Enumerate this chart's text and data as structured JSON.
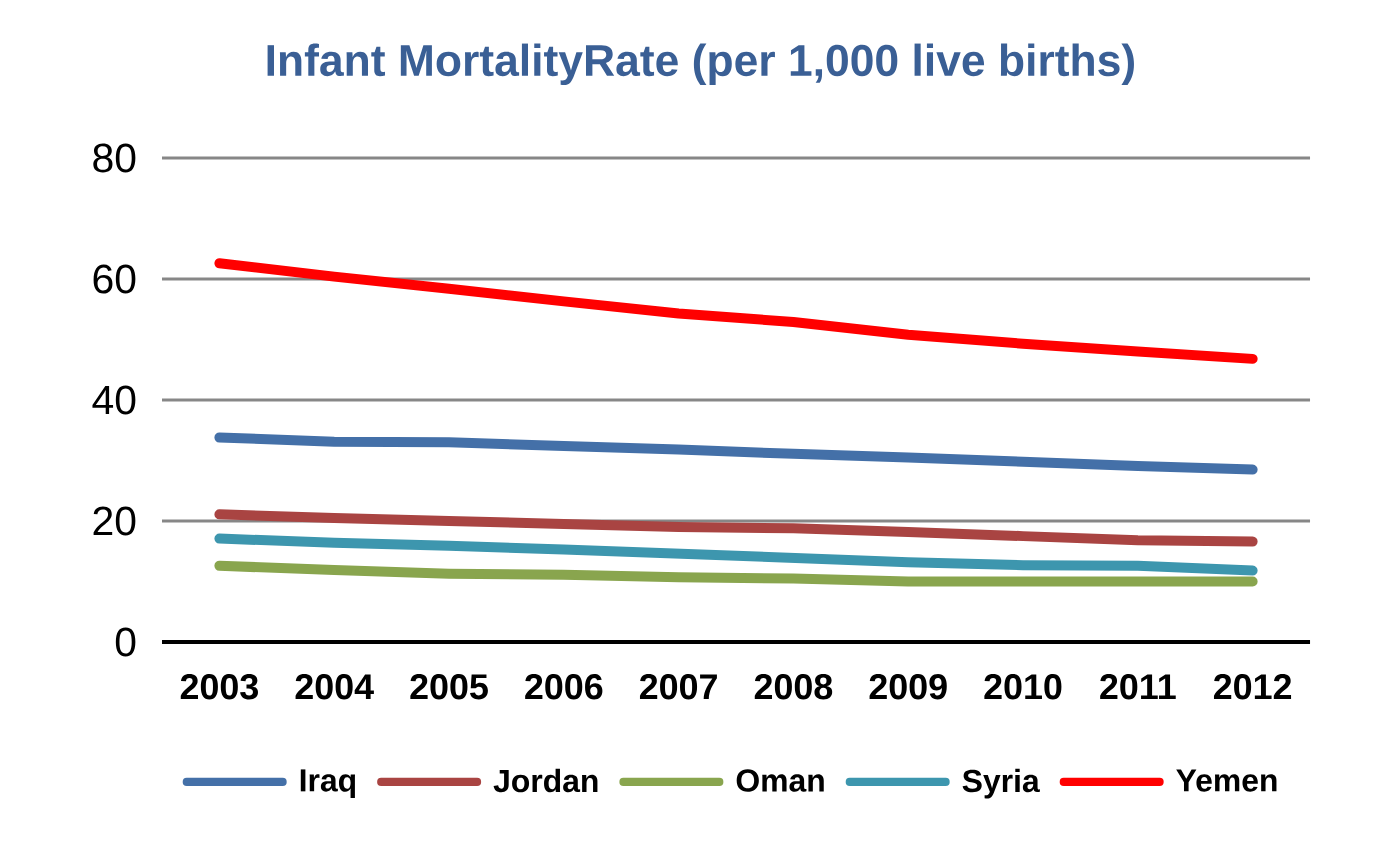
{
  "chart_data": {
    "type": "line",
    "title": "Infant MortalityRate (per 1,000 live births)",
    "categories": [
      "2003",
      "2004",
      "2005",
      "2006",
      "2007",
      "2008",
      "2009",
      "2010",
      "2011",
      "2012"
    ],
    "series": [
      {
        "name": "Iraq",
        "color": "#4470a8",
        "values": [
          33.8,
          33.1,
          33.0,
          32.4,
          31.8,
          31.1,
          30.5,
          29.8,
          29.1,
          28.5
        ]
      },
      {
        "name": "Jordan",
        "color": "#a94442",
        "values": [
          21.1,
          20.5,
          20.0,
          19.5,
          19.0,
          18.8,
          18.2,
          17.5,
          16.8,
          16.6
        ]
      },
      {
        "name": "Oman",
        "color": "#89a54e",
        "values": [
          12.6,
          11.9,
          11.3,
          11.1,
          10.7,
          10.5,
          10.0,
          10.0,
          10.0,
          10.0
        ]
      },
      {
        "name": "Syria",
        "color": "#3d96ae",
        "values": [
          17.1,
          16.4,
          15.9,
          15.3,
          14.6,
          13.9,
          13.2,
          12.7,
          12.6,
          11.8
        ]
      },
      {
        "name": "Yemen",
        "color": "#ff0000",
        "values": [
          62.6,
          60.4,
          58.4,
          56.3,
          54.3,
          52.9,
          50.8,
          49.3,
          48.0,
          46.8
        ]
      }
    ],
    "ylim": [
      0,
      80
    ],
    "yticks": [
      0,
      20,
      40,
      60,
      80
    ],
    "grid": "y",
    "legend": "bottom"
  }
}
